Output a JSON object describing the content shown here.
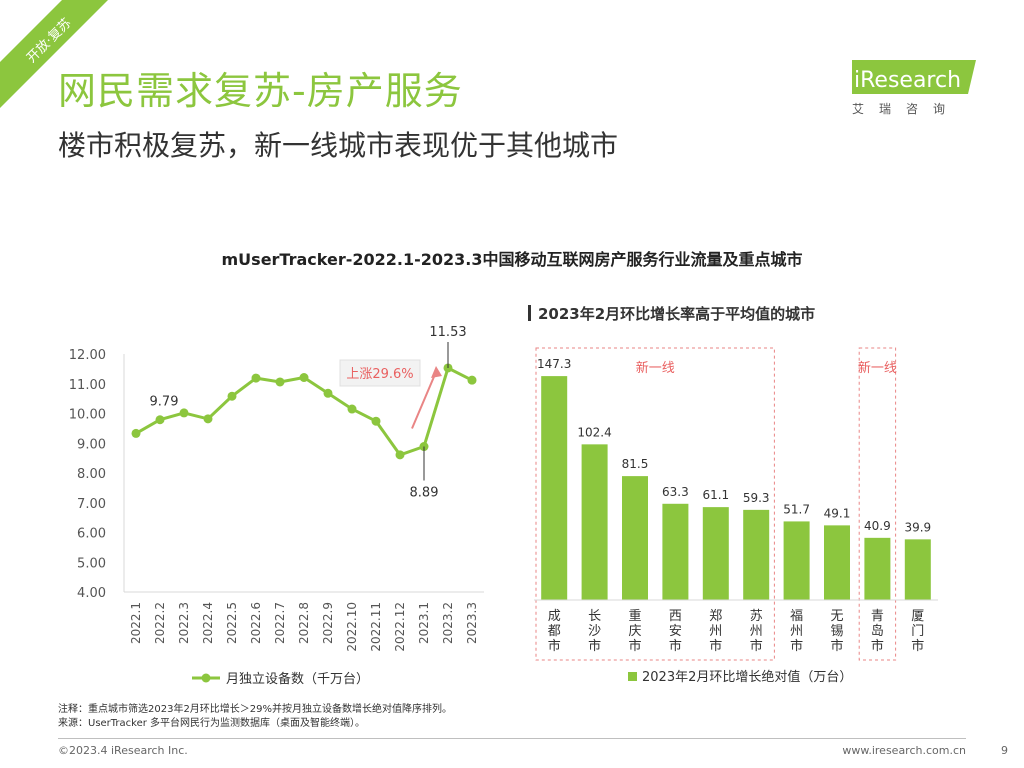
{
  "corner_tag": "开放·复苏",
  "title": "网民需求复苏-房产服务",
  "subtitle": "楼市积极复苏，新一线城市表现优于其他城市",
  "logo": {
    "brand": "iResearch",
    "sub": "艾瑞咨询"
  },
  "chart_title": "mUserTracker-2022.1-2023.3中国移动互联网房产服务行业流量及重点城市",
  "colors": {
    "accent": "#8cc63e",
    "highlight_border": "#e98585",
    "highlight_text": "#e96060"
  },
  "chart_data": [
    {
      "type": "line",
      "x": [
        "2022.1",
        "2022.2",
        "2022.3",
        "2022.4",
        "2022.5",
        "2022.6",
        "2022.7",
        "2022.8",
        "2022.9",
        "2022.10",
        "2022.11",
        "2022.12",
        "2023.1",
        "2023.2",
        "2023.3"
      ],
      "series": [
        {
          "name": "月独立设备数（千万台）",
          "values": [
            9.33,
            9.79,
            10.02,
            9.82,
            10.58,
            11.19,
            11.06,
            11.21,
            10.68,
            10.15,
            9.74,
            8.61,
            8.89,
            11.53,
            11.12
          ]
        }
      ],
      "ylim": [
        4.0,
        12.0
      ],
      "yticks": [
        "4.00",
        "5.00",
        "6.00",
        "7.00",
        "8.00",
        "9.00",
        "10.00",
        "11.00",
        "12.00"
      ],
      "labeled_points": [
        {
          "x": "2022.2",
          "label": "9.79"
        },
        {
          "x": "2023.1",
          "label": "8.89"
        },
        {
          "x": "2023.2",
          "label": "11.53"
        }
      ],
      "annotation": "上涨29.6%",
      "legend": "bottom"
    },
    {
      "type": "bar",
      "title": "2023年2月环比增长率高于平均值的城市",
      "categories": [
        "成都市",
        "长沙市",
        "重庆市",
        "西安市",
        "郑州市",
        "苏州市",
        "福州市",
        "无锡市",
        "青岛市",
        "厦门市"
      ],
      "series": [
        {
          "name": "2023年2月环比增长绝对值（万台）",
          "values": [
            147.3,
            102.4,
            81.5,
            63.3,
            61.1,
            59.3,
            51.7,
            49.1,
            40.9,
            39.9
          ]
        }
      ],
      "data_labels": [
        "147.3",
        "102.4",
        "81.5",
        "63.3",
        "61.1",
        "59.3",
        "51.7",
        "49.1",
        "40.9",
        "39.9"
      ],
      "ylim": [
        0,
        150
      ],
      "groups": [
        {
          "label": "新一线",
          "categories": [
            "成都市",
            "长沙市",
            "重庆市",
            "西安市",
            "郑州市",
            "苏州市"
          ]
        },
        {
          "label": "新一线",
          "categories": [
            "青岛市"
          ]
        }
      ],
      "legend": "bottom"
    }
  ],
  "notes": [
    "注释：重点城市筛选2023年2月环比增长＞29%并按月独立设备数增长绝对值降序排列。",
    "来源：UserTracker 多平台网民行为监测数据库（桌面及智能终端）。"
  ],
  "footer": {
    "copyright": "©2023.4 iResearch Inc.",
    "site": "www.iresearch.com.cn",
    "page": "9"
  }
}
